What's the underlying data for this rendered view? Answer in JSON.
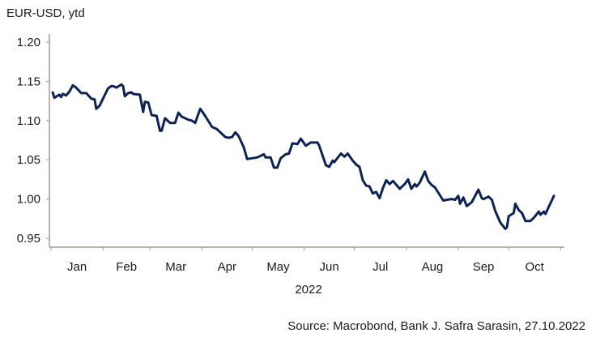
{
  "chart_data": {
    "type": "line",
    "title": "EUR-USD, ytd",
    "xlabel": "2022",
    "ylabel": "",
    "source": "Source: Macrobond, Bank J. Safra Sarasin, 27.10.2022",
    "ylim": [
      0.95,
      1.2
    ],
    "yticks": [
      "1.20",
      "1.15",
      "1.10",
      "1.05",
      "1.00",
      "0.95"
    ],
    "xlim_day_of_year": [
      0,
      307
    ],
    "month_labels": [
      "Jan",
      "Feb",
      "Mar",
      "Apr",
      "May",
      "Jun",
      "Jul",
      "Aug",
      "Sep",
      "Oct"
    ],
    "month_start_days": [
      0,
      31,
      59,
      90,
      120,
      151,
      181,
      212,
      243,
      273,
      304
    ],
    "grid": false,
    "line_color": "#0d2356",
    "series": [
      {
        "name": "EUR-USD",
        "x_day_of_year": [
          1,
          2,
          5,
          6,
          7,
          9,
          11,
          13,
          15,
          18,
          21,
          24,
          26,
          27,
          29,
          31,
          34,
          36,
          37,
          39,
          42,
          43,
          44,
          46,
          48,
          49,
          53,
          55,
          56,
          58,
          60,
          63,
          65,
          66,
          68,
          71,
          74,
          76,
          78,
          82,
          84,
          86,
          89,
          91,
          94,
          96,
          99,
          100,
          104,
          106,
          108,
          110,
          112,
          115,
          117,
          120,
          123,
          127,
          128,
          131,
          133,
          135,
          137,
          140,
          142,
          144,
          147,
          149,
          152,
          155,
          159,
          160,
          164,
          166,
          168,
          169,
          173,
          175,
          177,
          180,
          182,
          184,
          186,
          188,
          190,
          192,
          194,
          196,
          198,
          200,
          202,
          204,
          208,
          211,
          213,
          215,
          217,
          218,
          220,
          223,
          225,
          227,
          229,
          234,
          236,
          239,
          241,
          243,
          244,
          246,
          248,
          251,
          255,
          257,
          258,
          261,
          263,
          265,
          268,
          271,
          272,
          273,
          276,
          277,
          279,
          281,
          283,
          286,
          288,
          291,
          292,
          294,
          295,
          300
        ],
        "values": [
          1.136,
          1.129,
          1.133,
          1.13,
          1.134,
          1.132,
          1.137,
          1.145,
          1.142,
          1.135,
          1.135,
          1.128,
          1.127,
          1.115,
          1.119,
          1.128,
          1.141,
          1.144,
          1.144,
          1.142,
          1.146,
          1.144,
          1.131,
          1.135,
          1.136,
          1.134,
          1.133,
          1.111,
          1.124,
          1.123,
          1.107,
          1.106,
          1.087,
          1.087,
          1.103,
          1.097,
          1.097,
          1.11,
          1.105,
          1.101,
          1.1,
          1.097,
          1.115,
          1.109,
          1.099,
          1.092,
          1.089,
          1.087,
          1.079,
          1.078,
          1.079,
          1.085,
          1.08,
          1.066,
          1.051,
          1.052,
          1.053,
          1.057,
          1.053,
          1.053,
          1.04,
          1.04,
          1.052,
          1.057,
          1.058,
          1.071,
          1.07,
          1.077,
          1.068,
          1.072,
          1.072,
          1.068,
          1.043,
          1.041,
          1.049,
          1.047,
          1.058,
          1.054,
          1.058,
          1.049,
          1.044,
          1.041,
          1.024,
          1.017,
          1.016,
          1.007,
          1.009,
          1.001,
          1.014,
          1.024,
          1.019,
          1.023,
          1.013,
          1.019,
          1.025,
          1.013,
          1.019,
          1.016,
          1.021,
          1.035,
          1.023,
          1.018,
          1.015,
          0.998,
          0.999,
          1.0,
          0.999,
          1.004,
          0.994,
          1.002,
          0.991,
          0.996,
          1.012,
          1.001,
          1.0,
          1.003,
          0.999,
          0.985,
          0.97,
          0.962,
          0.964,
          0.978,
          0.982,
          0.994,
          0.986,
          0.982,
          0.972,
          0.972,
          0.976,
          0.984,
          0.98,
          0.984,
          0.981,
          1.004
        ]
      }
    ]
  }
}
